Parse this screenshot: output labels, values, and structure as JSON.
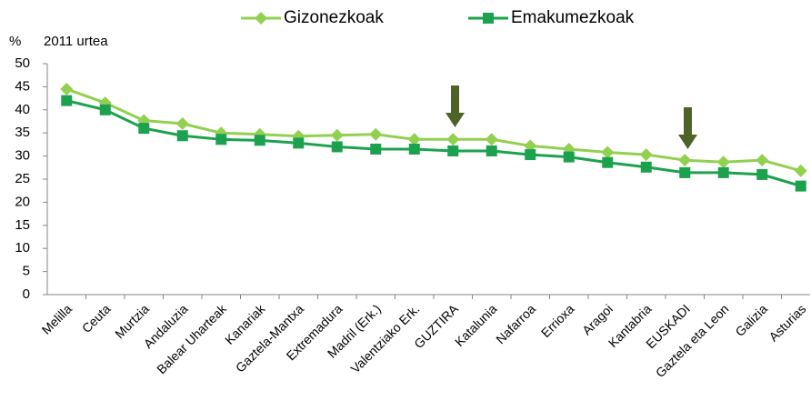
{
  "chart_data": {
    "type": "line",
    "y_label": "%",
    "subtitle": "2011 urtea",
    "categories": [
      "Melilla",
      "Ceuta",
      "Murtzia",
      "Andaluzia",
      "Balear Uharteak",
      "Kanariak",
      "Gaztela-Mantxa",
      "Extremadura",
      "Madril (Erk.)",
      "Valentziako Erk.",
      "GUZTIRA",
      "Katalunia",
      "Nafarroa",
      "Errioxa",
      "Aragoi",
      "Kantabria",
      "EUSKADI",
      "Gaztela eta Leon",
      "Galizia",
      "Asturias"
    ],
    "series": [
      {
        "name": "Gizonezkoak",
        "color": "#92d050",
        "marker": "diamond",
        "values": [
          44.5,
          41.5,
          37.7,
          37,
          35,
          34.7,
          34.3,
          34.5,
          34.7,
          33.6,
          33.6,
          33.6,
          32.2,
          31.5,
          30.8,
          30.3,
          29.1,
          28.7,
          29.1,
          26.8
        ]
      },
      {
        "name": "Emakumezkoak",
        "color": "#1ca24f",
        "marker": "square",
        "values": [
          42,
          40,
          36,
          34.4,
          33.6,
          33.4,
          32.8,
          32,
          31.5,
          31.5,
          31.1,
          31.1,
          30.3,
          29.8,
          28.6,
          27.6,
          26.4,
          26.4,
          26,
          23.5
        ]
      }
    ],
    "ylim": [
      0,
      50
    ],
    "yticks": [
      0,
      5,
      10,
      15,
      20,
      25,
      30,
      35,
      40,
      45,
      50
    ],
    "grid": false,
    "legend": "top"
  }
}
